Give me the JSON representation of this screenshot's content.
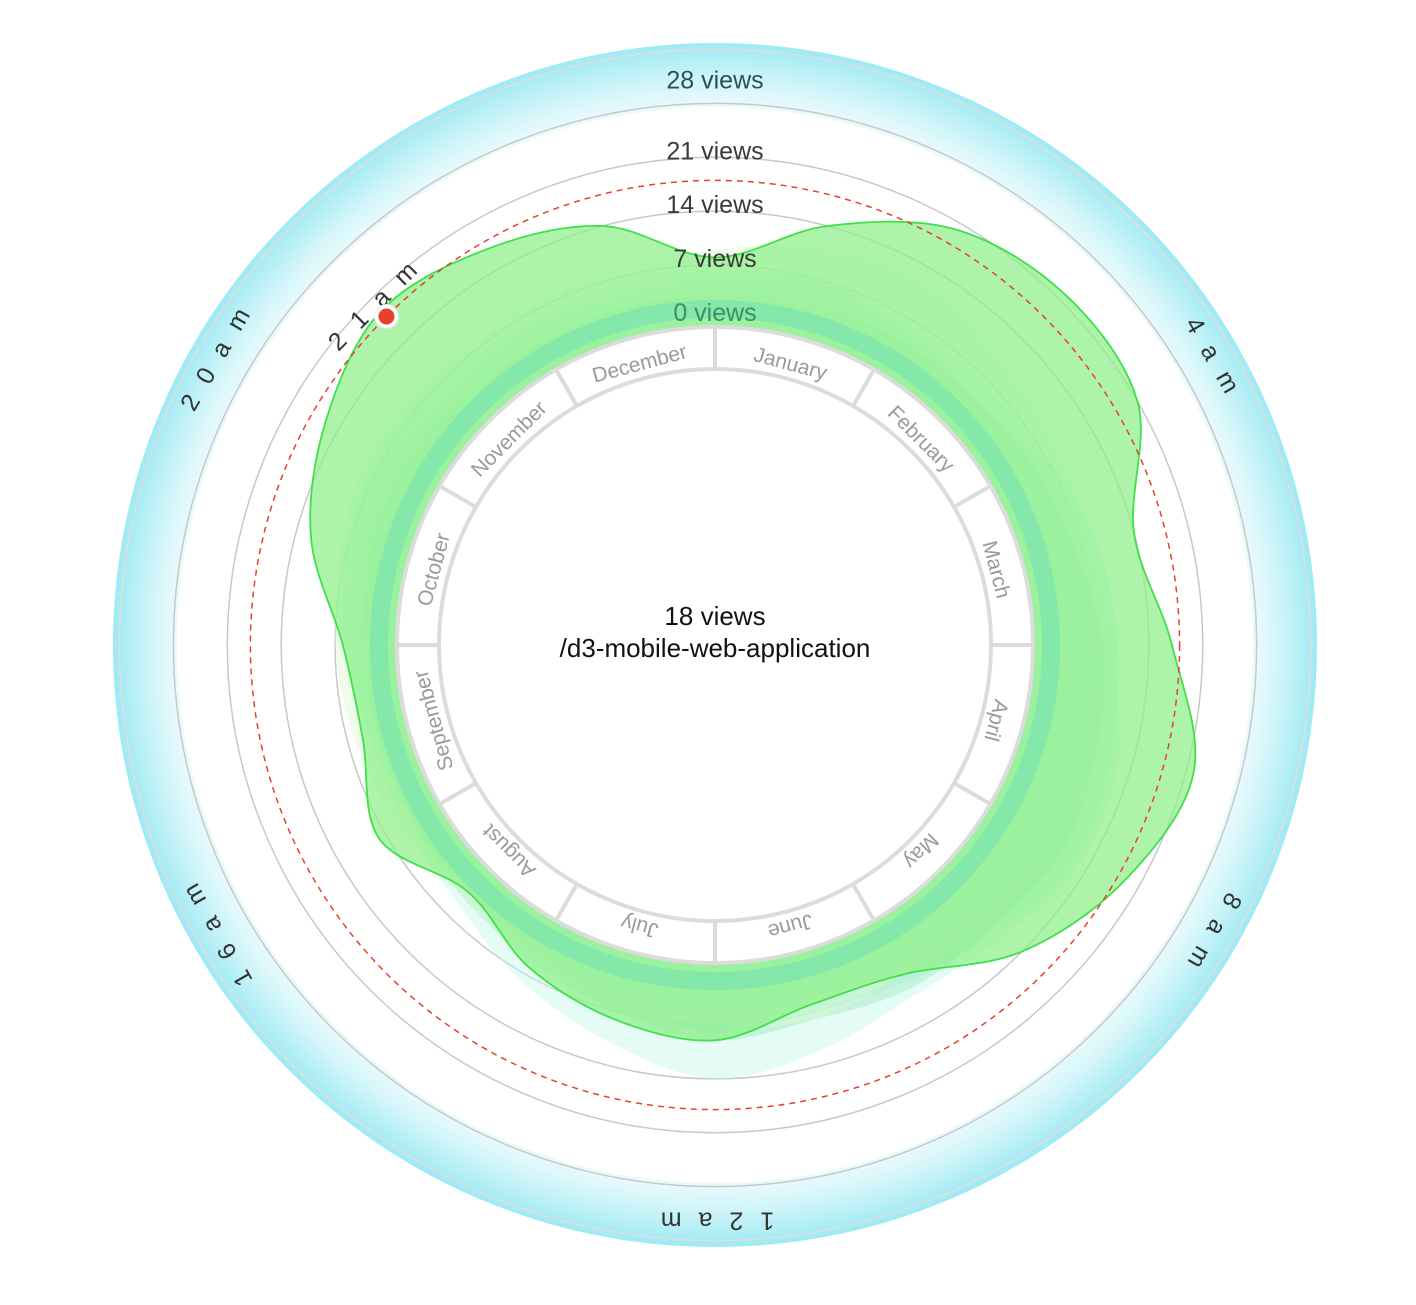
{
  "center": {
    "value_label": "18 views",
    "title": "/d3-mobile-web-application"
  },
  "colors": {
    "outer_ring": "#9eeaf3",
    "highlight_series": "#3fe04a",
    "highlight_fill": "#8ef089",
    "reference_line": "#e8402f",
    "marker": "#e8402f",
    "grid": "#c8c8c8"
  },
  "chart_data": {
    "type": "radial-area",
    "radial_axis": {
      "ticks": [
        0,
        7,
        14,
        21,
        28
      ],
      "tick_labels": [
        "0 views",
        "7 views",
        "14 views",
        "21 views",
        "28 views"
      ],
      "range": [
        0,
        28
      ]
    },
    "angular_axis": {
      "unit": "hour",
      "range": [
        0,
        24
      ],
      "hour_labels": [
        {
          "hour": 4,
          "label": "4 a m"
        },
        {
          "hour": 8,
          "label": "8 a m"
        },
        {
          "hour": 12,
          "label": "1 2 a m"
        },
        {
          "hour": 16,
          "label": "1 6 a m"
        },
        {
          "hour": 20,
          "label": "2 0 a m"
        },
        {
          "hour": 21,
          "label": "2 1 a m"
        }
      ]
    },
    "months": [
      "January",
      "February",
      "March",
      "April",
      "May",
      "June",
      "July",
      "August",
      "September",
      "October",
      "November",
      "December"
    ],
    "reference_value": 18,
    "marker": {
      "hour": 21,
      "value": 18
    },
    "highlight_series": {
      "hours": [
        0,
        1,
        2,
        3,
        4,
        5,
        6,
        7,
        8,
        9,
        10,
        11,
        12,
        13,
        14,
        15,
        16,
        17,
        18,
        19,
        20,
        21,
        22,
        23
      ],
      "values": [
        8,
        14,
        20,
        22,
        21,
        14,
        17,
        22,
        19,
        14,
        7,
        6,
        9,
        8,
        6,
        3,
        8,
        5,
        6,
        12,
        16,
        19,
        17,
        14
      ]
    },
    "background_series": [
      {
        "values": [
          5,
          6,
          5,
          4,
          6,
          7,
          8,
          9,
          8,
          6,
          5,
          4,
          5,
          4,
          3,
          3,
          4,
          4,
          5,
          6,
          6,
          5,
          5,
          4
        ]
      },
      {
        "values": [
          3,
          4,
          4,
          3,
          5,
          6,
          7,
          8,
          9,
          7,
          6,
          5,
          6,
          5,
          3,
          2,
          3,
          3,
          4,
          5,
          5,
          4,
          4,
          3
        ]
      },
      {
        "values": [
          6,
          7,
          6,
          6,
          7,
          9,
          10,
          11,
          12,
          10,
          8,
          7,
          8,
          6,
          4,
          3,
          3,
          4,
          6,
          7,
          8,
          7,
          6,
          5
        ]
      },
      {
        "values": [
          2,
          3,
          3,
          3,
          4,
          5,
          6,
          7,
          7,
          6,
          5,
          5,
          5,
          4,
          3,
          2,
          2,
          3,
          3,
          4,
          4,
          3,
          3,
          2
        ]
      },
      {
        "values": [
          4,
          5,
          5,
          4,
          5,
          7,
          9,
          12,
          13,
          11,
          10,
          12,
          14,
          11,
          8,
          5,
          4,
          4,
          5,
          5,
          5,
          4,
          4,
          4
        ]
      },
      {
        "values": [
          3,
          3,
          4,
          4,
          5,
          6,
          8,
          9,
          10,
          9,
          9,
          8,
          9,
          7,
          5,
          4,
          3,
          3,
          3,
          4,
          4,
          3,
          3,
          3
        ]
      },
      {
        "values": [
          9,
          11,
          12,
          10,
          9,
          8,
          9,
          10,
          9,
          8,
          7,
          8,
          7,
          6,
          5,
          4,
          5,
          6,
          7,
          8,
          9,
          8,
          8,
          8
        ]
      }
    ]
  }
}
